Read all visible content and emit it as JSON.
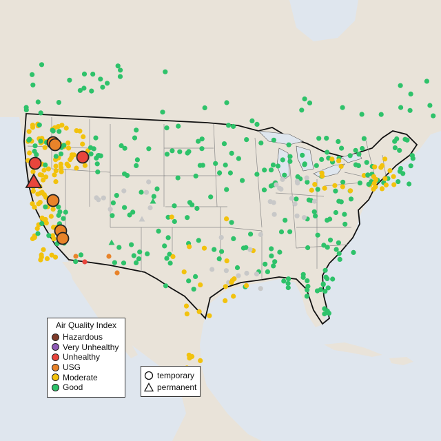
{
  "legend": {
    "title": "Air Quality Index",
    "items": [
      {
        "label": "Hazardous",
        "color": "#7e3b2a"
      },
      {
        "label": "Very Unhealthy",
        "color": "#8e5ab5"
      },
      {
        "label": "Unhealthy",
        "color": "#e8453c"
      },
      {
        "label": "USG",
        "color": "#e8832a"
      },
      {
        "label": "Moderate",
        "color": "#f2c20d"
      },
      {
        "label": "Good",
        "color": "#2ec26a"
      }
    ]
  },
  "monitor_legend": {
    "items": [
      {
        "label": "temporary",
        "shape": "circle-icon"
      },
      {
        "label": "permanent",
        "shape": "triangle-icon"
      }
    ]
  },
  "colors": {
    "land": "#e9e3d9",
    "water": "#dfe6ee",
    "no_data": "#c8c8c8"
  }
}
